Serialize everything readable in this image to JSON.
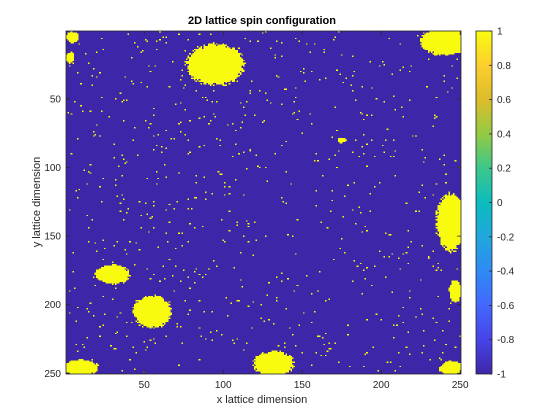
{
  "chart_data": {
    "type": "heatmap",
    "title": "2D lattice spin configuration",
    "xlabel": "x lattice dimension",
    "ylabel": "y lattice dimension",
    "xlim": [
      1,
      250
    ],
    "ylim": [
      1,
      250
    ],
    "y_direction": "reversed",
    "x_ticks": [
      50,
      100,
      150,
      200,
      250
    ],
    "y_ticks": [
      50,
      100,
      150,
      200,
      250
    ],
    "grid": false,
    "colorbar": {
      "location": "right",
      "colormap": "parula",
      "clim": [
        -1,
        1
      ],
      "ticks": [
        1,
        0.8,
        0.6,
        0.4,
        0.2,
        0,
        -0.2,
        -0.4,
        -0.6,
        -0.8,
        -1
      ],
      "tick_labels": [
        "1",
        "0.8",
        "0.6",
        "0.4",
        "0.2",
        "0",
        "-0.2",
        "-0.4",
        "-0.6",
        "-0.8",
        "-1"
      ]
    },
    "background_value": -1,
    "value_colors": {
      "-1": "#3e26a8",
      "1": "#f9fb0e"
    },
    "spin_up_domains": [
      {
        "cx": 95,
        "cy": 25,
        "rx": 18,
        "ry": 15
      },
      {
        "cx": 5,
        "cy": 5,
        "rx": 4,
        "ry": 4
      },
      {
        "cx": 3,
        "cy": 20,
        "rx": 3,
        "ry": 4
      },
      {
        "cx": 240,
        "cy": 8,
        "rx": 15,
        "ry": 10
      },
      {
        "cx": 175,
        "cy": 80,
        "rx": 3,
        "ry": 2
      },
      {
        "cx": 244,
        "cy": 140,
        "rx": 9,
        "ry": 21
      },
      {
        "cx": 30,
        "cy": 178,
        "rx": 11,
        "ry": 7
      },
      {
        "cx": 55,
        "cy": 205,
        "rx": 12,
        "ry": 12
      },
      {
        "cx": 247,
        "cy": 190,
        "rx": 4,
        "ry": 8
      },
      {
        "cx": 10,
        "cy": 246,
        "rx": 11,
        "ry": 6
      },
      {
        "cx": 132,
        "cy": 243,
        "rx": 13,
        "ry": 9
      },
      {
        "cx": 245,
        "cy": 246,
        "rx": 8,
        "ry": 5
      }
    ],
    "isolated_up_spin_fraction": 0.012
  }
}
